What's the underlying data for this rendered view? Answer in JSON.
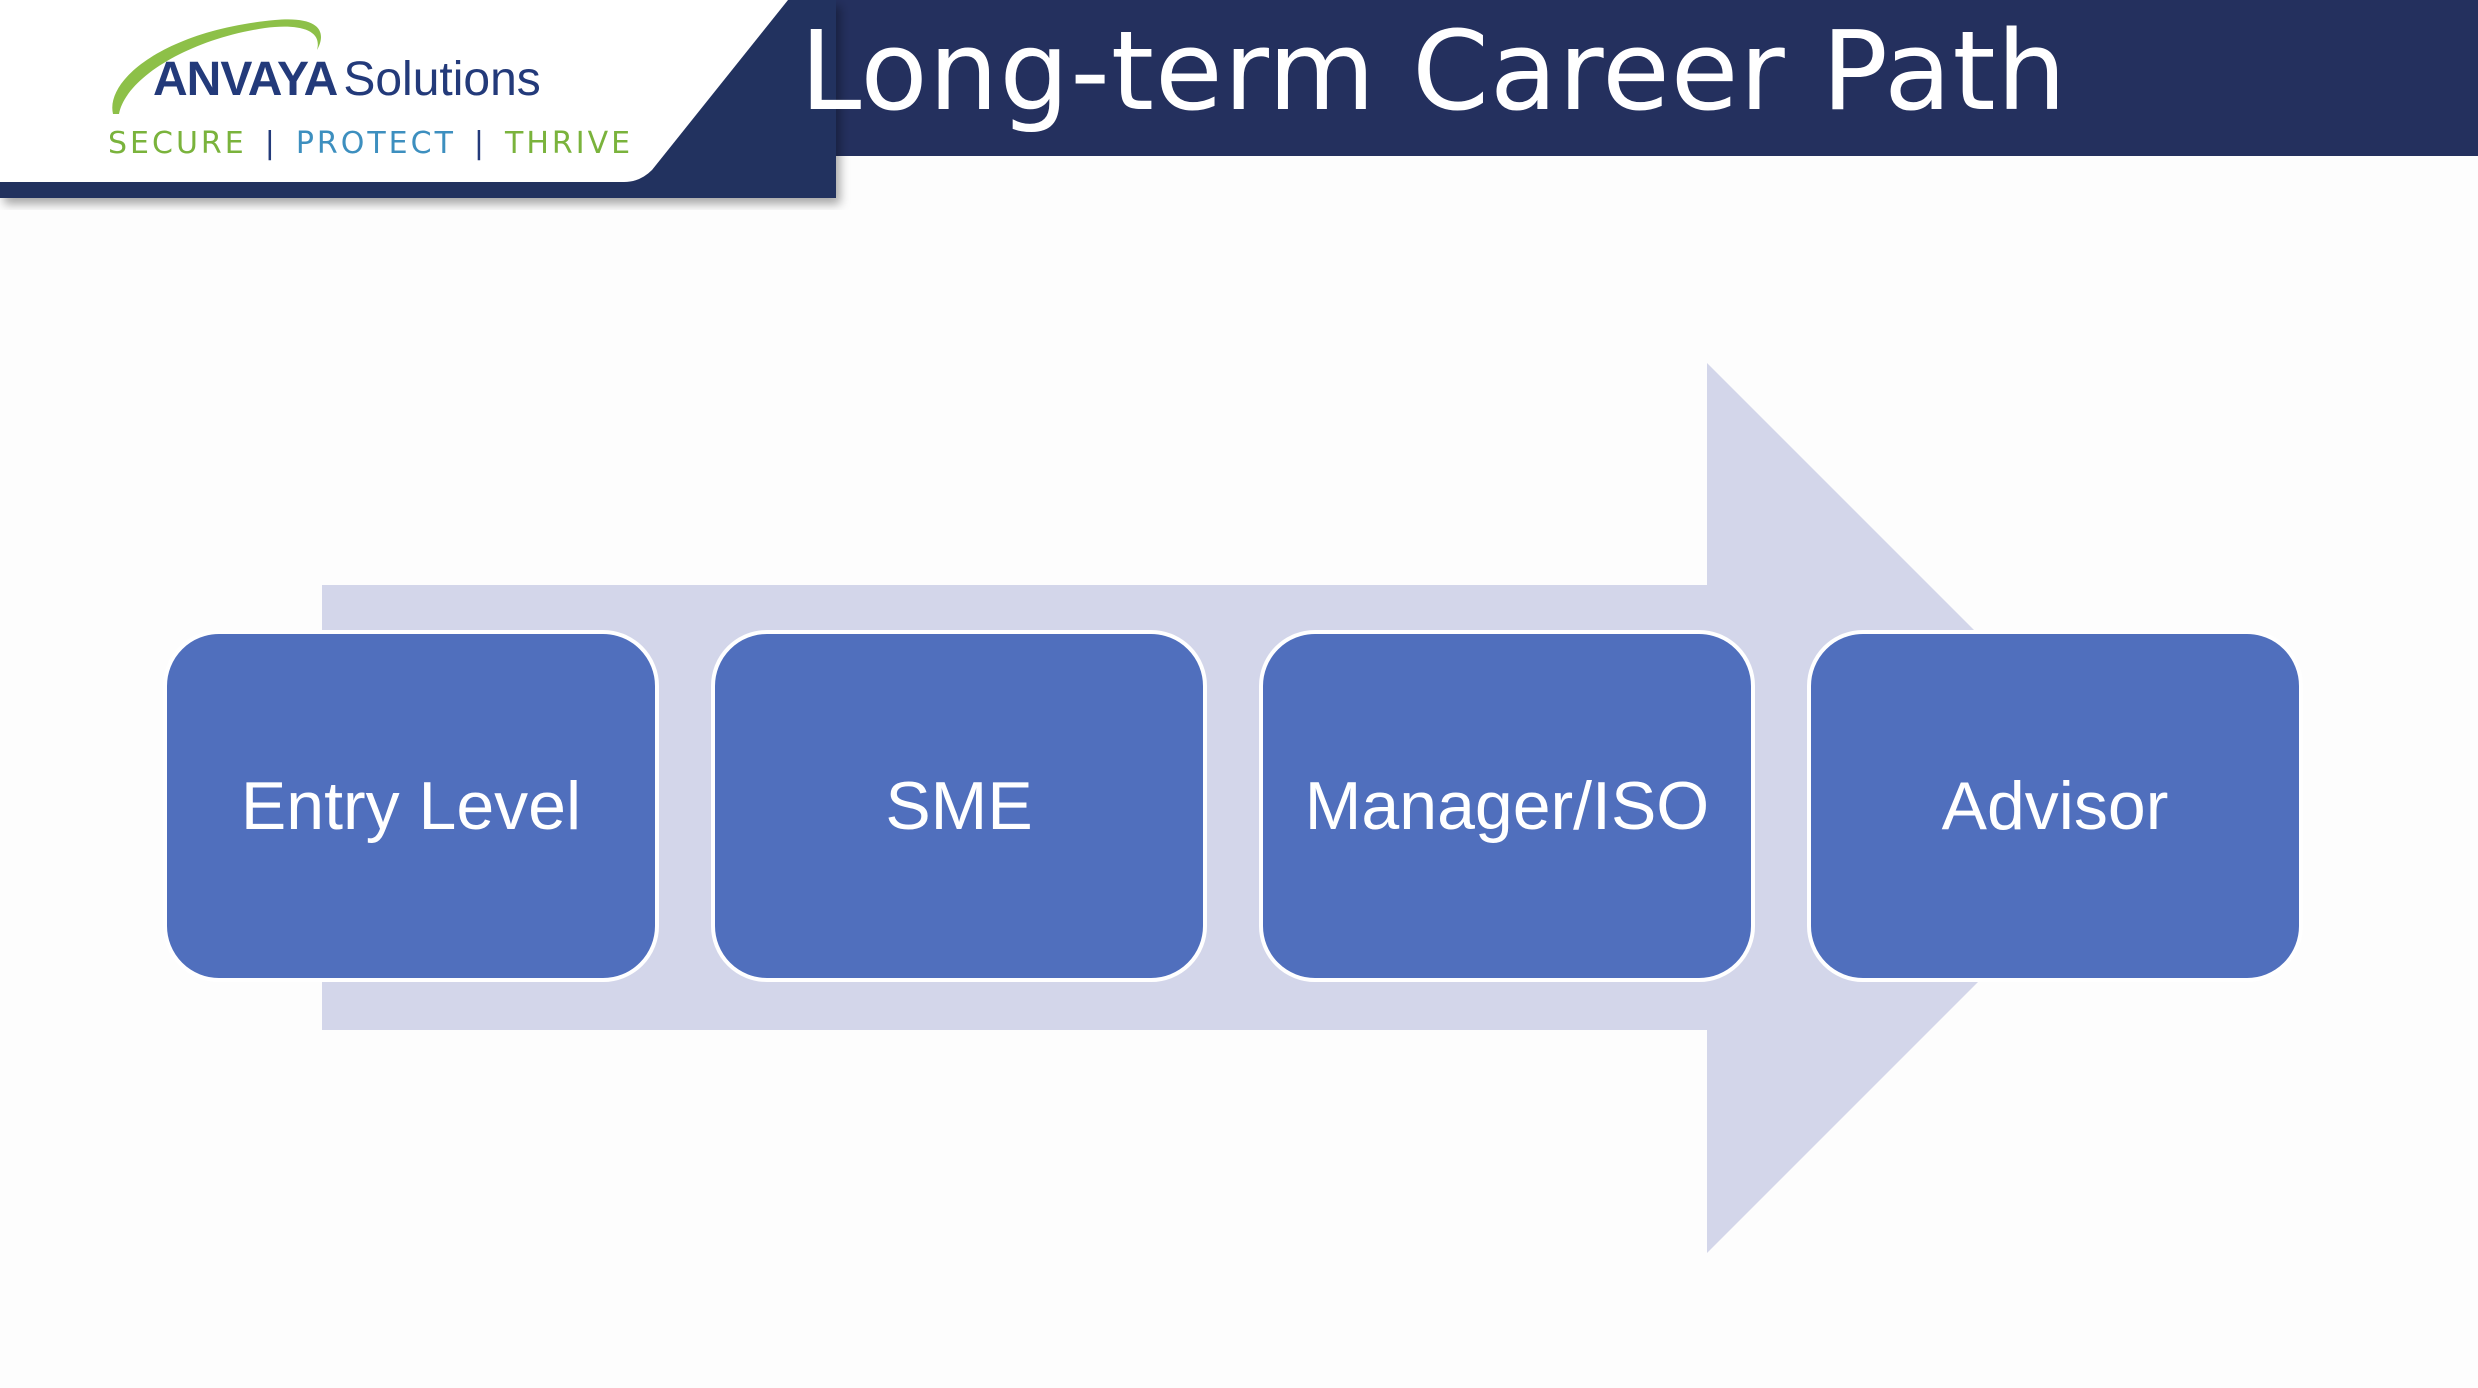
{
  "slide": {
    "title": "Long-term Career Path"
  },
  "logo": {
    "brand": "ANVAYA",
    "brand_suffix": "Solutions",
    "tagline": {
      "secure": "SECURE",
      "separator": "|",
      "protect": "PROTECT",
      "thrive": "THRIVE"
    }
  },
  "colors": {
    "header_band": "#24305e",
    "arrow": "#d3d6ea",
    "step_fill": "#506fbd",
    "logo_green": "#7ab33c",
    "logo_blue": "#3d8fbf"
  },
  "process": {
    "steps": [
      {
        "label": "Entry Level"
      },
      {
        "label": "SME"
      },
      {
        "label": "Manager/ISO"
      },
      {
        "label": "Advisor"
      }
    ]
  }
}
